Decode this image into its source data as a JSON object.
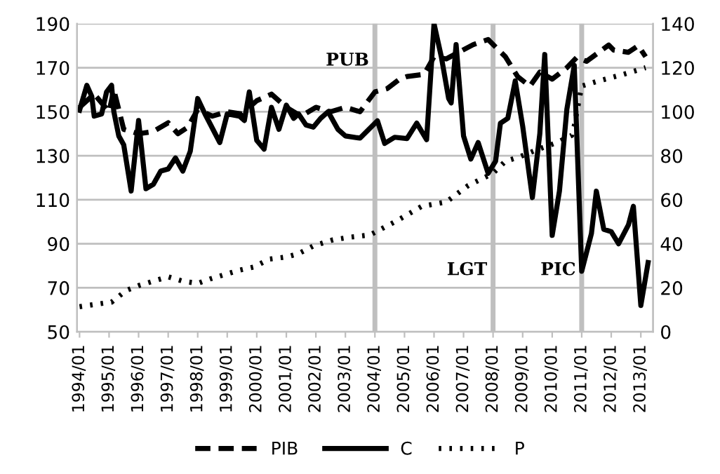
{
  "chart_data": {
    "type": "line",
    "xlim": [
      "1993-12",
      "2013-06"
    ],
    "xticks": [
      {
        "value": "1994-01",
        "label": "1994/01"
      },
      {
        "value": "1995-01",
        "label": "1995/01"
      },
      {
        "value": "1996-01",
        "label": "1996/01"
      },
      {
        "value": "1997-01",
        "label": "1997/01"
      },
      {
        "value": "1998-01",
        "label": "1998/01"
      },
      {
        "value": "1999-01",
        "label": "1999/01"
      },
      {
        "value": "2000-01",
        "label": "2000/01"
      },
      {
        "value": "2001-01",
        "label": "2001/01"
      },
      {
        "value": "2002-01",
        "label": "2002/01"
      },
      {
        "value": "2003-01",
        "label": "2003/01"
      },
      {
        "value": "2004-01",
        "label": "2004/01"
      },
      {
        "value": "2005-01",
        "label": "2005/01"
      },
      {
        "value": "2006-01",
        "label": "2006/01"
      },
      {
        "value": "2007-01",
        "label": "2007/01"
      },
      {
        "value": "2008-01",
        "label": "2008/01"
      },
      {
        "value": "2009-01",
        "label": "2009/01"
      },
      {
        "value": "2010-01",
        "label": "2010/01"
      },
      {
        "value": "2011-01",
        "label": "2011/01"
      },
      {
        "value": "2012-01",
        "label": "2012/01"
      },
      {
        "value": "2013-01",
        "label": "2013/01"
      }
    ],
    "ylim": [
      50,
      190
    ],
    "yticks": [
      50,
      70,
      90,
      110,
      130,
      150,
      170,
      190
    ],
    "y2lim": [
      0,
      140
    ],
    "y2ticks": [
      0,
      20,
      40,
      60,
      80,
      100,
      120,
      140
    ],
    "grid": "y",
    "legend": "bottom",
    "marker": "none",
    "series": [
      {
        "name": "PIB",
        "color": "#000000",
        "line_style": "dashed",
        "axis": "y",
        "x": [
          "1994-01",
          "1994-07",
          "1995-01",
          "1995-03",
          "1995-07",
          "1996-01",
          "1996-07",
          "1997-01",
          "1997-05",
          "1997-09",
          "1998-01",
          "1998-07",
          "1999-01",
          "1999-07",
          "2000-01",
          "2000-07",
          "2001-01",
          "2001-07",
          "2002-01",
          "2002-07",
          "2003-01",
          "2003-07",
          "2004-01",
          "2004-06",
          "2004-11",
          "2005-02",
          "2005-09",
          "2006-01",
          "2006-06",
          "2006-11",
          "2007-05",
          "2007-11",
          "2008-06",
          "2008-11",
          "2009-04",
          "2009-08",
          "2010-01",
          "2010-07",
          "2010-11",
          "2011-03",
          "2011-12",
          "2012-02",
          "2012-08",
          "2012-12",
          "2013-03"
        ],
        "values": [
          152,
          158,
          150,
          160,
          142,
          140,
          141,
          145,
          140,
          143,
          151,
          148,
          150,
          149,
          155,
          158,
          152,
          148,
          152,
          150,
          152,
          150,
          159,
          160.5,
          164.8,
          166,
          167,
          175,
          174,
          177,
          180.5,
          182.8,
          175,
          165.9,
          161.6,
          168,
          164.8,
          170,
          174.7,
          172.9,
          180.3,
          178,
          177,
          180,
          175
        ]
      },
      {
        "name": "C",
        "color": "#000000",
        "line_style": "solid",
        "axis": "y",
        "x": [
          "1994-01",
          "1994-04",
          "1994-06",
          "1994-07",
          "1994-10",
          "1994-12",
          "1995-02",
          "1995-03",
          "1995-05",
          "1995-07",
          "1995-10",
          "1996-01",
          "1996-04",
          "1996-07",
          "1996-10",
          "1997-01",
          "1997-04",
          "1997-07",
          "1997-10",
          "1998-01",
          "1998-04",
          "1998-10",
          "1999-01",
          "1999-06",
          "1999-08",
          "1999-10",
          "2000-01",
          "2000-04",
          "2000-07",
          "2000-10",
          "2001-01",
          "2001-04",
          "2001-06",
          "2001-09",
          "2001-12",
          "2002-03",
          "2002-06",
          "2002-10",
          "2003-01",
          "2003-07",
          "2004-02",
          "2004-05",
          "2004-09",
          "2005-02",
          "2005-06",
          "2005-10",
          "2006-01",
          "2006-04",
          "2006-07",
          "2006-08",
          "2006-10",
          "2007-01",
          "2007-04",
          "2007-07",
          "2007-11",
          "2008-02",
          "2008-04",
          "2008-07",
          "2008-10",
          "2009-01",
          "2009-05",
          "2009-08",
          "2009-10",
          "2010-01",
          "2010-04",
          "2010-07",
          "2010-10",
          "2011-01",
          "2011-05",
          "2011-07",
          "2011-10",
          "2012-01",
          "2012-04",
          "2012-08",
          "2012-10",
          "2013-01",
          "2013-04"
        ],
        "values": [
          150.7,
          162,
          157,
          148,
          149,
          159,
          162,
          150,
          139,
          135,
          114,
          146,
          115,
          117,
          123,
          124,
          129,
          123,
          132,
          156,
          149,
          136,
          149,
          148,
          146,
          159,
          137,
          133,
          152,
          142,
          153,
          147,
          149,
          144,
          143,
          147,
          150,
          142,
          139,
          138,
          145.9,
          135.6,
          138.4,
          137.8,
          144.8,
          137.3,
          190,
          175,
          156,
          154,
          180.5,
          139,
          128.5,
          136,
          122,
          127.5,
          144.8,
          147,
          164,
          143.5,
          111,
          140,
          176,
          93.8,
          114,
          151,
          171,
          77.5,
          94.6,
          113.9,
          96.6,
          95.5,
          90,
          98.6,
          107,
          62,
          81.5
        ]
      },
      {
        "name": "P",
        "color": "#000000",
        "line_style": "dotted",
        "axis": "y2",
        "x": [
          "1994-01",
          "1994-07",
          "1995-02",
          "1995-08",
          "1996-01",
          "1996-07",
          "1997-01",
          "1997-07",
          "1998-01",
          "1998-06",
          "1998-12",
          "1999-06",
          "1999-12",
          "2000-06",
          "2001-01",
          "2001-06",
          "2001-12",
          "2002-08",
          "2003-03",
          "2003-11",
          "2004-10",
          "2005-08",
          "2006-06",
          "2007-03",
          "2008-01",
          "2008-06",
          "2008-12",
          "2009-07",
          "2010-03",
          "2010-09",
          "2010-10",
          "2011-01",
          "2011-08",
          "2012-06",
          "2013-03"
        ],
        "values": [
          11.4,
          12.4,
          13.5,
          18.8,
          21,
          23,
          25,
          23,
          22,
          24,
          26,
          28,
          29.5,
          33,
          34,
          35.5,
          39,
          41.8,
          43,
          44,
          50.5,
          57,
          59,
          66.5,
          72,
          77.5,
          79.6,
          82.8,
          86,
          89.3,
          93.6,
          111.7,
          114,
          117,
          120
        ]
      }
    ],
    "ref_lines": [
      {
        "axis": "x",
        "value": "2004-01",
        "label": "PUB",
        "color": "#bfbfbf"
      },
      {
        "axis": "x",
        "value": "2008-01",
        "label": "LGT",
        "color": "#bfbfbf"
      },
      {
        "axis": "x",
        "value": "2011-01",
        "label": "PIC",
        "color": "#bfbfbf"
      }
    ]
  }
}
